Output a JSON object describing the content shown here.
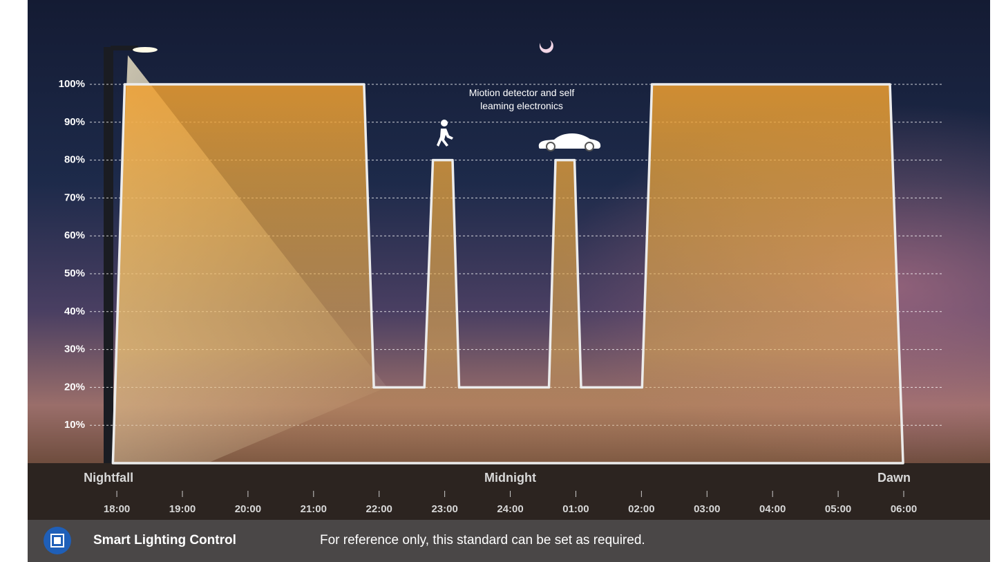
{
  "chart_data": {
    "type": "area",
    "x": [
      17.94,
      18.12,
      21.77,
      21.92,
      22.69,
      22.82,
      23.12,
      23.22,
      24.59,
      24.69,
      24.98,
      25.08,
      26.01,
      26.16,
      29.79,
      29.99
    ],
    "values": [
      0,
      100,
      100,
      20,
      20,
      80,
      80,
      20,
      20,
      80,
      80,
      20,
      20,
      100,
      100,
      0
    ],
    "color": "#f0a030",
    "xlim": [
      16.64,
      31.18
    ],
    "ylim": [
      0,
      100
    ],
    "xticks": [
      {
        "value": 18,
        "label": "18:00"
      },
      {
        "value": 19,
        "label": "19:00"
      },
      {
        "value": 20,
        "label": "20:00"
      },
      {
        "value": 21,
        "label": "21:00"
      },
      {
        "value": 22,
        "label": "22:00"
      },
      {
        "value": 23,
        "label": "23:00"
      },
      {
        "value": 24,
        "label": "24:00"
      },
      {
        "value": 25,
        "label": "01:00"
      },
      {
        "value": 26,
        "label": "02:00"
      },
      {
        "value": 27,
        "label": "03:00"
      },
      {
        "value": 28,
        "label": "04:00"
      },
      {
        "value": 29,
        "label": "05:00"
      },
      {
        "value": 30,
        "label": "06:00"
      }
    ],
    "yticks": [
      {
        "value": 10,
        "label": "10%"
      },
      {
        "value": 20,
        "label": "20%"
      },
      {
        "value": 30,
        "label": "30%"
      },
      {
        "value": 40,
        "label": "40%"
      },
      {
        "value": 50,
        "label": "50%"
      },
      {
        "value": 60,
        "label": "60%"
      },
      {
        "value": 70,
        "label": "70%"
      },
      {
        "value": 80,
        "label": "80%"
      },
      {
        "value": 90,
        "label": "90%"
      },
      {
        "value": 100,
        "label": "100%"
      }
    ],
    "grid": true,
    "period_labels": [
      "Nightfall",
      "Midnight",
      "Dawn"
    ],
    "annotation": "Miotion detector and self leaming electronics"
  },
  "footer": {
    "title": "Smart Lighting Control",
    "note": "For reference only, this standard can be set as required."
  }
}
